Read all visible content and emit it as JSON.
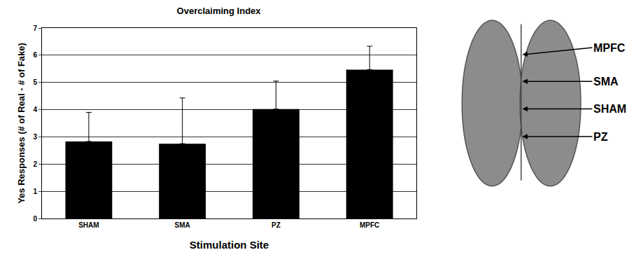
{
  "chart_data": {
    "type": "bar",
    "title": "Overclaiming Index",
    "x_label": "Stimulation Site",
    "y_label": "Yes Responses (# of Real - # of Fake)",
    "categories": [
      "SHAM",
      "SMA",
      "PZ",
      "MPFC"
    ],
    "values": [
      2.83,
      2.75,
      4.02,
      5.47
    ],
    "errors": [
      1.07,
      1.68,
      1.03,
      0.86
    ],
    "color": "#000000",
    "ylim": [
      0,
      7
    ],
    "yticks": [
      0,
      1,
      2,
      3,
      4,
      5,
      6,
      7
    ],
    "grid": true,
    "annotations": [
      "MPFC",
      "SMA",
      "SHAM",
      "PZ"
    ]
  }
}
